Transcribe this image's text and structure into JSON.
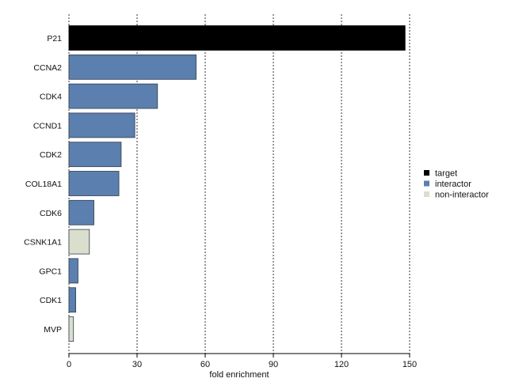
{
  "chart_data": {
    "type": "bar",
    "orientation": "horizontal",
    "title": "",
    "xlabel": "fold enrichment",
    "ylabel": "",
    "xlim": [
      0,
      150
    ],
    "xticks": [
      0,
      30,
      60,
      90,
      120,
      150
    ],
    "grid": "vertical dotted",
    "categories": [
      "P21",
      "CCNA2",
      "CDK4",
      "CCND1",
      "CDK2",
      "COL18A1",
      "CDK6",
      "CSNK1A1",
      "GPC1",
      "CDK1",
      "MVP"
    ],
    "values": [
      148,
      56,
      39,
      29,
      23,
      22,
      11,
      9,
      4,
      3,
      2
    ],
    "groups": [
      "target",
      "interactor",
      "interactor",
      "interactor",
      "interactor",
      "interactor",
      "interactor",
      "non-interactor",
      "interactor",
      "interactor",
      "non-interactor"
    ],
    "legend": {
      "placement": "right",
      "entries": [
        {
          "name": "target",
          "color": "#000000"
        },
        {
          "name": "interactor",
          "color": "#5b7fae"
        },
        {
          "name": "non-interactor",
          "color": "#d9dfcc"
        }
      ]
    }
  }
}
